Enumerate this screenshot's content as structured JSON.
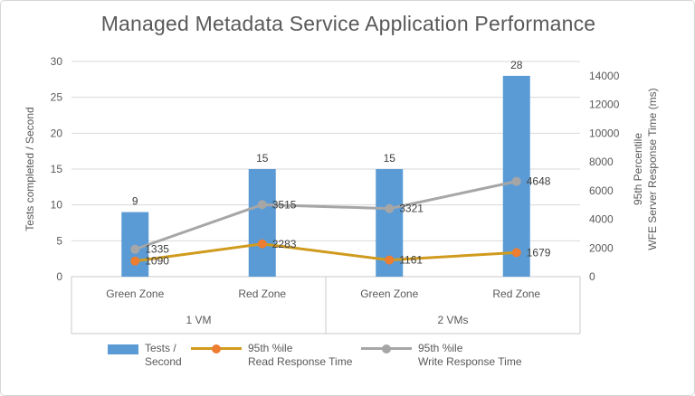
{
  "chart_data": {
    "type": "combo",
    "title": "Managed Metadata Service Application Performance",
    "categories": [
      "Green Zone",
      "Red Zone",
      "Green Zone",
      "Red Zone"
    ],
    "category_groups": [
      {
        "label": "1 VM",
        "span": 2
      },
      {
        "label": "2 VMs",
        "span": 2
      }
    ],
    "left_axis": {
      "title": "Tests completed / Second",
      "min": 0,
      "max": 30,
      "tick_step": 5,
      "ticks": [
        0,
        5,
        10,
        15,
        20,
        25,
        30
      ]
    },
    "right_axis": {
      "title_line1": "95th Percentile",
      "title_line2": "WFE Server Response Time (ms)",
      "min": 0,
      "max": 15000,
      "tick_step": 2000,
      "ticks": [
        0,
        2000,
        4000,
        6000,
        8000,
        10000,
        12000,
        14000
      ]
    },
    "grid": true,
    "legend_position": "bottom",
    "series": [
      {
        "name": "Tests / Second",
        "legend_lines": [
          "Tests /",
          "Second"
        ],
        "type": "bar",
        "axis": "left",
        "color": "#5B9BD5",
        "values": [
          9,
          15,
          15,
          28
        ]
      },
      {
        "name": "95th %ile Read Response Time",
        "legend_lines": [
          "95th %ile",
          "Read Response Time"
        ],
        "type": "line",
        "axis": "right",
        "line_color": "#D09B1E",
        "marker_color": "#ED7D31",
        "values": [
          1090,
          2283,
          1161,
          1679
        ]
      },
      {
        "name": "95th %ile Write Response Time",
        "legend_lines": [
          "95th %ile",
          "Write Response Time"
        ],
        "type": "line",
        "axis": "right",
        "line_color": "#A6A6A6",
        "marker_color": "#A6A6A6",
        "values": [
          1335,
          3515,
          3321,
          4648
        ],
        "render_axis_max": 10500
      }
    ],
    "colors": {
      "grid": "#D9D9D9",
      "axis_box": "#C9C9C9",
      "axis_text": "#595959",
      "data_label_text": "#404040"
    }
  }
}
